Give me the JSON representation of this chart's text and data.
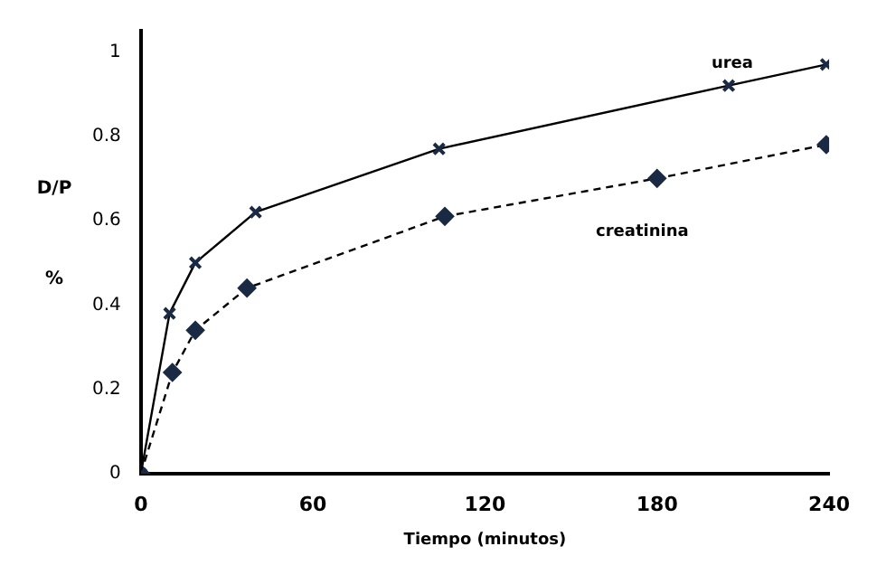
{
  "chart_data": {
    "type": "line",
    "xlabel": "Tiempo (minutos)",
    "ylabel": "D/P %",
    "xlim": [
      0,
      240
    ],
    "xticks": [
      0,
      60,
      120,
      180,
      240
    ],
    "ylim": [
      0,
      1.05
    ],
    "yticks": [
      0,
      0.2,
      0.4,
      0.6,
      0.8,
      1
    ],
    "grid": false,
    "legend": false,
    "series": [
      {
        "name": "urea",
        "color": "#1a2a44",
        "marker": "cross",
        "line_style": "solid",
        "x": [
          0,
          10,
          19,
          40,
          104,
          205,
          239
        ],
        "values": [
          0,
          0.38,
          0.5,
          0.62,
          0.77,
          0.92,
          0.97
        ]
      },
      {
        "name": "creatinina",
        "color": "#1a2a44",
        "marker": "diamond",
        "line_style": "dashed",
        "x": [
          0,
          11,
          19,
          37,
          106,
          180,
          239
        ],
        "values": [
          0,
          0.24,
          0.34,
          0.44,
          0.61,
          0.7,
          0.78
        ]
      }
    ]
  }
}
